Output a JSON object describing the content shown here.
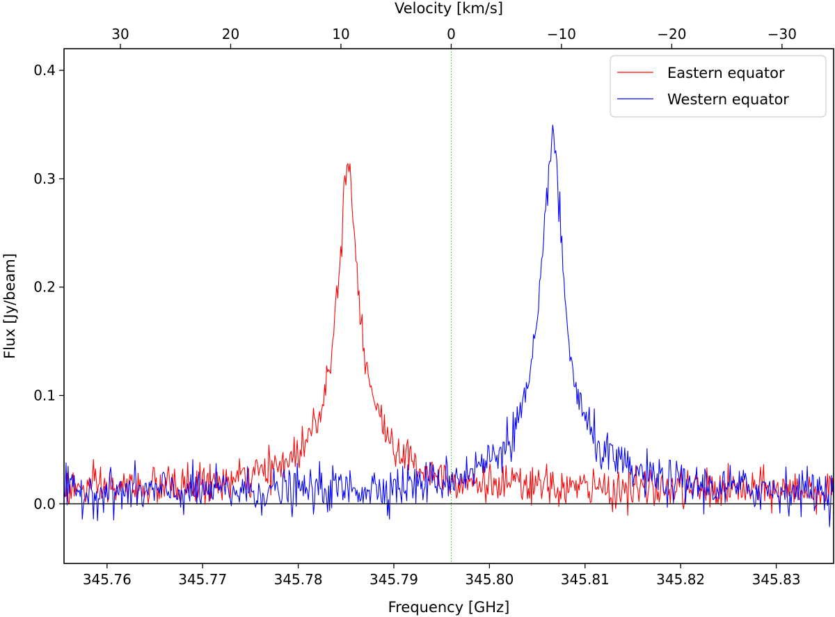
{
  "chart_data": {
    "type": "line",
    "title": "",
    "xlabel": "Frequency [GHz]",
    "x2label": "Velocity [km/s]",
    "ylabel": "Flux [Jy/beam]",
    "xlim": [
      345.7555,
      345.836
    ],
    "ylim": [
      -0.055,
      0.42
    ],
    "xticks": [
      345.76,
      345.77,
      345.78,
      345.79,
      345.8,
      345.81,
      345.82,
      345.83
    ],
    "xtick_labels": [
      "345.76",
      "345.77",
      "345.78",
      "345.79",
      "345.80",
      "345.81",
      "345.82",
      "345.83"
    ],
    "yticks": [
      0.0,
      0.1,
      0.2,
      0.3,
      0.4
    ],
    "ytick_labels": [
      "0.0",
      "0.1",
      "0.2",
      "0.3",
      "0.4"
    ],
    "x2ticks": [
      30,
      20,
      10,
      0,
      -10,
      -20,
      -30
    ],
    "x2tick_labels": [
      "30",
      "20",
      "10",
      "0",
      "−10",
      "−20",
      "−30"
    ],
    "rest_frequency_ghz": 345.796,
    "legend_position": "top-right",
    "series": [
      {
        "name": "Eastern equator",
        "color": "#ff0000",
        "peaks": [
          {
            "x": 345.7852,
            "amp": 0.24,
            "gamma": 0.0012
          },
          {
            "x": 345.7853,
            "amp": 0.06,
            "gamma": 0.0045
          }
        ],
        "baseline": 0.012,
        "noise": 0.009
      },
      {
        "name": "Western equator",
        "color": "#0000ff",
        "peaks": [
          {
            "x": 345.8066,
            "amp": 0.27,
            "gamma": 0.0012
          },
          {
            "x": 345.8063,
            "amp": 0.06,
            "gamma": 0.0048
          }
        ],
        "baseline": 0.01,
        "noise": 0.01
      }
    ],
    "zero_line": true,
    "grid": false
  }
}
